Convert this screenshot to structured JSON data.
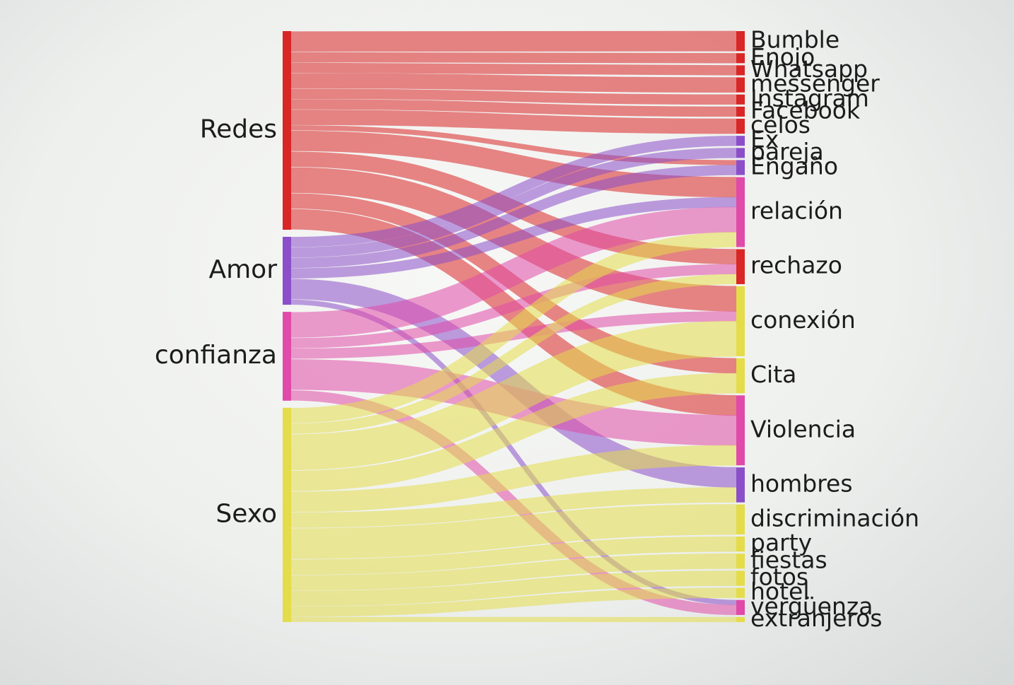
{
  "chart_data": {
    "type": "sankey",
    "title": "",
    "sources": [
      {
        "name": "Redes",
        "color": "#d92626"
      },
      {
        "name": "Amor",
        "color": "#8a4fc9"
      },
      {
        "name": "confianza",
        "color": "#e04aa8"
      },
      {
        "name": "Sexo",
        "color": "#e4dc4a"
      }
    ],
    "targets": [
      {
        "name": "Bumble",
        "value": 4
      },
      {
        "name": "Enojo",
        "value": 2
      },
      {
        "name": "Whatsapp",
        "value": 2
      },
      {
        "name": "messenger",
        "value": 3
      },
      {
        "name": "Instagram",
        "value": 2
      },
      {
        "name": "Facebook",
        "value": 2
      },
      {
        "name": "celos",
        "value": 3
      },
      {
        "name": "Ex",
        "value": 2
      },
      {
        "name": "pareja",
        "value": 2
      },
      {
        "name": "Engaño",
        "value": 3
      },
      {
        "name": "relación",
        "value": 14
      },
      {
        "name": "rechazo",
        "value": 7
      },
      {
        "name": "conexión",
        "value": 14
      },
      {
        "name": "Cita",
        "value": 7
      },
      {
        "name": "Violencia",
        "value": 14
      },
      {
        "name": "hombres",
        "value": 7
      },
      {
        "name": "discriminación",
        "value": 6
      },
      {
        "name": "party",
        "value": 3
      },
      {
        "name": "fiestas",
        "value": 3
      },
      {
        "name": "fotos",
        "value": 3
      },
      {
        "name": "hotel",
        "value": 2
      },
      {
        "name": "vergüenza",
        "value": 3
      },
      {
        "name": "extranjeros",
        "value": 1
      }
    ],
    "links": [
      {
        "source": "Redes",
        "target": "Bumble",
        "value": 4
      },
      {
        "source": "Redes",
        "target": "Enojo",
        "value": 2
      },
      {
        "source": "Redes",
        "target": "Whatsapp",
        "value": 2
      },
      {
        "source": "Redes",
        "target": "messenger",
        "value": 3
      },
      {
        "source": "Redes",
        "target": "Instagram",
        "value": 2
      },
      {
        "source": "Redes",
        "target": "Facebook",
        "value": 2
      },
      {
        "source": "Redes",
        "target": "celos",
        "value": 3
      },
      {
        "source": "Redes",
        "target": "Engaño",
        "value": 1
      },
      {
        "source": "Redes",
        "target": "relación",
        "value": 4
      },
      {
        "source": "Redes",
        "target": "rechazo",
        "value": 3
      },
      {
        "source": "Redes",
        "target": "conexión",
        "value": 5
      },
      {
        "source": "Redes",
        "target": "Cita",
        "value": 3
      },
      {
        "source": "Redes",
        "target": "Violencia",
        "value": 4
      },
      {
        "source": "Amor",
        "target": "Ex",
        "value": 2
      },
      {
        "source": "Amor",
        "target": "pareja",
        "value": 2
      },
      {
        "source": "Amor",
        "target": "Engaño",
        "value": 2
      },
      {
        "source": "Amor",
        "target": "relación",
        "value": 2
      },
      {
        "source": "Amor",
        "target": "hombres",
        "value": 4
      },
      {
        "source": "Amor",
        "target": "vergüenza",
        "value": 1
      },
      {
        "source": "confianza",
        "target": "relación",
        "value": 5
      },
      {
        "source": "confianza",
        "target": "rechazo",
        "value": 2
      },
      {
        "source": "confianza",
        "target": "conexión",
        "value": 2
      },
      {
        "source": "confianza",
        "target": "Violencia",
        "value": 6
      },
      {
        "source": "confianza",
        "target": "vergüenza",
        "value": 2
      },
      {
        "source": "Sexo",
        "target": "relación",
        "value": 3
      },
      {
        "source": "Sexo",
        "target": "rechazo",
        "value": 2
      },
      {
        "source": "Sexo",
        "target": "conexión",
        "value": 7
      },
      {
        "source": "Sexo",
        "target": "Cita",
        "value": 4
      },
      {
        "source": "Sexo",
        "target": "Violencia",
        "value": 4
      },
      {
        "source": "Sexo",
        "target": "hombres",
        "value": 3
      },
      {
        "source": "Sexo",
        "target": "discriminación",
        "value": 6
      },
      {
        "source": "Sexo",
        "target": "party",
        "value": 3
      },
      {
        "source": "Sexo",
        "target": "fiestas",
        "value": 3
      },
      {
        "source": "Sexo",
        "target": "fotos",
        "value": 3
      },
      {
        "source": "Sexo",
        "target": "hotel",
        "value": 2
      },
      {
        "source": "Sexo",
        "target": "extranjeros",
        "value": 1
      }
    ]
  }
}
